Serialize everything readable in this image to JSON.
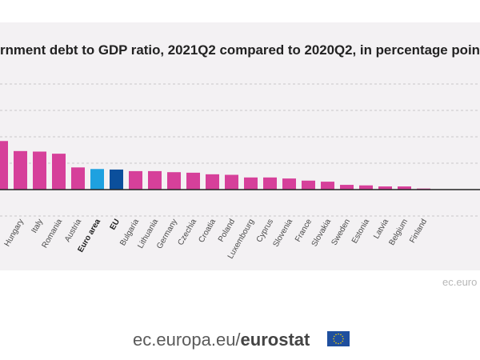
{
  "chart_data": {
    "type": "bar",
    "title": "rnment debt to GDP ratio, 2021Q2 compared to 2020Q2, in percentage poin",
    "categories": [
      "",
      "Hungary",
      "Italy",
      "Romania",
      "Austria",
      "Euro area",
      "EU",
      "Bulgaria",
      "Lithuania",
      "Germany",
      "Czechia",
      "Croatia",
      "Poland",
      "Luxembourg",
      "Cyprus",
      "Slovenia",
      "France",
      "Slovakia",
      "Sweden",
      "Estonia",
      "Latvia",
      "Belgium",
      "Finland"
    ],
    "values": [
      9.2,
      7.3,
      7.2,
      6.8,
      4.2,
      3.9,
      3.8,
      3.5,
      3.5,
      3.3,
      3.2,
      2.9,
      2.8,
      2.3,
      2.3,
      2.1,
      1.7,
      1.5,
      0.9,
      0.8,
      0.6,
      0.6,
      0.2
    ],
    "highlight": {
      "Euro area": "#1ea1e0",
      "EU": "#0b4f9c"
    },
    "bar_color": "#d6409a",
    "ylim": [
      -5,
      20
    ],
    "gridlines": [
      -5,
      5,
      10,
      15,
      20
    ],
    "grid": true,
    "xlabel": "",
    "ylabel": "",
    "source_text": "ec.euro"
  },
  "footer": {
    "site": "ec.europa.eu/",
    "brand": "eurostat",
    "flag_icon": "eu-flag-icon"
  }
}
